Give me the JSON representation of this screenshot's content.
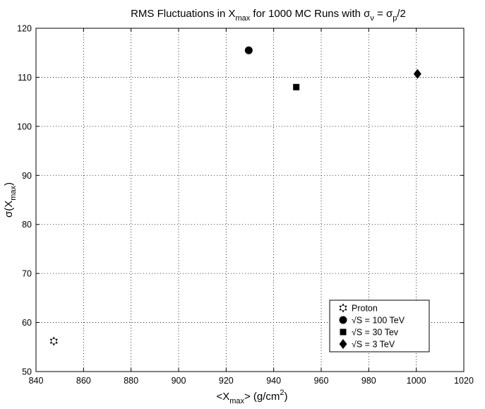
{
  "chart_data": {
    "type": "scatter",
    "title": {
      "t1": "RMS  Fluctuations  in  X",
      "t1_sub": "max",
      "t2": "  for  1000  MC  Runs  with  σ",
      "t2_sub": "ν",
      "t3": " = σ",
      "t3_sub": "p",
      "t4": "/2"
    },
    "xlabel": {
      "pre": "<X",
      "sub": "max",
      "mid": ">  (g/cm",
      "sup": "2",
      "post": ")"
    },
    "ylabel": {
      "pre": "σ(X",
      "sub": "max",
      "post": ")"
    },
    "xlim": [
      840,
      1020
    ],
    "ylim": [
      50,
      120
    ],
    "xticks": [
      840,
      860,
      880,
      900,
      920,
      940,
      960,
      980,
      1000,
      1020
    ],
    "yticks": [
      50,
      60,
      70,
      80,
      90,
      100,
      110,
      120
    ],
    "grid": true,
    "legend_position": "lower-right",
    "series": [
      {
        "name": "Proton",
        "marker": "hexagram",
        "points": [
          {
            "x": 847.5,
            "y": 56.2
          }
        ]
      },
      {
        "name": "√S = 100 TeV",
        "marker": "circle",
        "points": [
          {
            "x": 929.5,
            "y": 115.5
          }
        ]
      },
      {
        "name": "√S =   30 Tev",
        "marker": "square",
        "points": [
          {
            "x": 949.5,
            "y": 108.0
          }
        ]
      },
      {
        "name": "√S =      3 TeV",
        "marker": "diamond",
        "points": [
          {
            "x": 1000.5,
            "y": 110.7
          }
        ]
      }
    ]
  }
}
